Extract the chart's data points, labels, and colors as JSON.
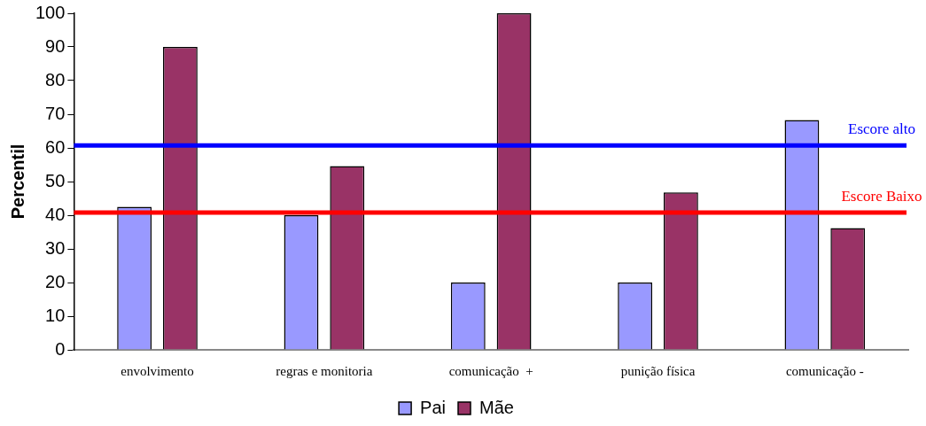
{
  "chart_data": {
    "type": "bar",
    "ylabel": "Percentil",
    "categories": [
      "envolvimento",
      "regras e monitoria",
      "comunicação  +",
      "punição física",
      "comunicação -"
    ],
    "series": [
      {
        "name": "Pai",
        "color": "#9999ff",
        "values": [
          42.5,
          40,
          20,
          20,
          68.3
        ]
      },
      {
        "name": "Mãe",
        "color": "#993366",
        "values": [
          90,
          54.6,
          100,
          46.8,
          36.2
        ]
      }
    ],
    "ylim": [
      0,
      100
    ],
    "yticks": [
      0,
      10,
      20,
      30,
      40,
      50,
      60,
      70,
      80,
      90,
      100
    ],
    "ref_lines": [
      {
        "axis": "y",
        "value": 60.7,
        "label": "Escore alto",
        "color": "#0000ff"
      },
      {
        "axis": "y",
        "value": 40.8,
        "label": "Escore Baixo",
        "color": "#ff0000"
      }
    ],
    "grid": false,
    "legend": "bottom"
  }
}
